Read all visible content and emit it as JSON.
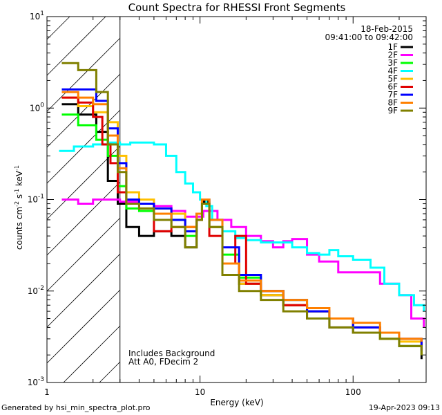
{
  "chart_data": {
    "type": "line",
    "title": "Count Spectra for RHESSI Front Segments",
    "xlabel": "Energy (keV)",
    "ylabel": "counts cm",
    "ylabel_full": "counts cm^-2 s^-1 keV^-1",
    "xscale": "log",
    "yscale": "log",
    "xlim": [
      1,
      300
    ],
    "ylim": [
      0.001,
      10
    ],
    "x_ticks": [
      {
        "value": 1,
        "label": "1"
      },
      {
        "value": 10,
        "label": "10"
      },
      {
        "value": 100,
        "label": "100"
      }
    ],
    "y_ticks": [
      {
        "value": 0.001,
        "base": "10",
        "exp": "-3"
      },
      {
        "value": 0.01,
        "base": "10",
        "exp": "-2"
      },
      {
        "value": 0.1,
        "base": "10",
        "exp": "-1"
      },
      {
        "value": 1,
        "base": "10",
        "exp": "0"
      },
      {
        "value": 10,
        "base": "10",
        "exp": "1"
      }
    ],
    "date": "18-Feb-2015",
    "time_range": "09:41:00 to 09:42:00",
    "hatched_below_keV": 3,
    "annotations": [
      "Includes Background",
      "Att A0, FDecim 2"
    ],
    "series": [
      {
        "name": "1F",
        "color": "#000000",
        "points": [
          [
            1.25,
            1.1
          ],
          [
            1.6,
            0.85
          ],
          [
            2.1,
            0.55
          ],
          [
            2.5,
            0.16
          ],
          [
            2.9,
            0.09
          ],
          [
            3.3,
            0.05
          ],
          [
            4,
            0.04
          ],
          [
            5,
            0.045
          ],
          [
            6.5,
            0.04
          ],
          [
            8,
            0.03
          ],
          [
            9.5,
            0.06
          ],
          [
            10.3,
            0.095
          ],
          [
            11.5,
            0.05
          ],
          [
            14,
            0.02
          ],
          [
            18,
            0.012
          ],
          [
            25,
            0.009
          ],
          [
            35,
            0.007
          ],
          [
            50,
            0.005
          ],
          [
            70,
            0.004
          ],
          [
            100,
            0.0035
          ],
          [
            150,
            0.003
          ],
          [
            200,
            0.0025
          ],
          [
            280,
            0.0018
          ]
        ]
      },
      {
        "name": "2F",
        "color": "#ff00ff",
        "points": [
          [
            1.25,
            0.1
          ],
          [
            1.6,
            0.09
          ],
          [
            2,
            0.1
          ],
          [
            2.5,
            0.1
          ],
          [
            3,
            0.095
          ],
          [
            4,
            0.09
          ],
          [
            5,
            0.085
          ],
          [
            6.5,
            0.075
          ],
          [
            8,
            0.065
          ],
          [
            10.5,
            0.075
          ],
          [
            13,
            0.06
          ],
          [
            16,
            0.05
          ],
          [
            20,
            0.04
          ],
          [
            25,
            0.035
          ],
          [
            30,
            0.03
          ],
          [
            35,
            0.035
          ],
          [
            40,
            0.037
          ],
          [
            50,
            0.025
          ],
          [
            60,
            0.021
          ],
          [
            80,
            0.016
          ],
          [
            100,
            0.016
          ],
          [
            150,
            0.012
          ],
          [
            200,
            0.009
          ],
          [
            240,
            0.005
          ],
          [
            290,
            0.004
          ]
        ]
      },
      {
        "name": "3F",
        "color": "#00ff00",
        "points": [
          [
            1.25,
            0.85
          ],
          [
            1.6,
            0.65
          ],
          [
            2.1,
            0.45
          ],
          [
            2.5,
            0.3
          ],
          [
            2.9,
            0.14
          ],
          [
            3.3,
            0.08
          ],
          [
            4,
            0.075
          ],
          [
            5,
            0.07
          ],
          [
            6.5,
            0.06
          ],
          [
            8,
            0.04
          ],
          [
            9.5,
            0.07
          ],
          [
            10.3,
            0.1
          ],
          [
            11.5,
            0.06
          ],
          [
            14,
            0.025
          ],
          [
            18,
            0.014
          ],
          [
            25,
            0.01
          ],
          [
            35,
            0.008
          ],
          [
            50,
            0.006
          ],
          [
            70,
            0.005
          ],
          [
            100,
            0.004
          ],
          [
            150,
            0.003
          ],
          [
            200,
            0.0025
          ],
          [
            280,
            0.002
          ]
        ]
      },
      {
        "name": "4F",
        "color": "#00ffff",
        "points": [
          [
            1.2,
            0.34
          ],
          [
            1.5,
            0.38
          ],
          [
            2,
            0.4
          ],
          [
            2.5,
            0.42
          ],
          [
            3,
            0.4
          ],
          [
            3.5,
            0.42
          ],
          [
            4,
            0.42
          ],
          [
            5,
            0.4
          ],
          [
            6,
            0.3
          ],
          [
            7,
            0.2
          ],
          [
            8,
            0.15
          ],
          [
            9,
            0.12
          ],
          [
            10,
            0.1
          ],
          [
            11,
            0.085
          ],
          [
            12,
            0.06
          ],
          [
            14,
            0.045
          ],
          [
            17,
            0.038
          ],
          [
            20,
            0.036
          ],
          [
            25,
            0.034
          ],
          [
            30,
            0.034
          ],
          [
            40,
            0.03
          ],
          [
            50,
            0.026
          ],
          [
            60,
            0.025
          ],
          [
            70,
            0.028
          ],
          [
            80,
            0.024
          ],
          [
            100,
            0.022
          ],
          [
            130,
            0.018
          ],
          [
            160,
            0.012
          ],
          [
            200,
            0.009
          ],
          [
            250,
            0.007
          ],
          [
            290,
            0.006
          ]
        ]
      },
      {
        "name": "5F",
        "color": "#ffc000",
        "points": [
          [
            1.25,
            1.3
          ],
          [
            1.6,
            1.05
          ],
          [
            2,
            0.9
          ],
          [
            2.5,
            0.7
          ],
          [
            2.9,
            0.3
          ],
          [
            3.3,
            0.12
          ],
          [
            4,
            0.1
          ],
          [
            5,
            0.08
          ],
          [
            6.5,
            0.07
          ],
          [
            8,
            0.05
          ],
          [
            9.5,
            0.07
          ],
          [
            10.3,
            0.09
          ],
          [
            11.5,
            0.05
          ],
          [
            14,
            0.02
          ],
          [
            18,
            0.012
          ],
          [
            25,
            0.009
          ],
          [
            35,
            0.007
          ],
          [
            50,
            0.006
          ],
          [
            70,
            0.005
          ],
          [
            100,
            0.004
          ],
          [
            150,
            0.003
          ],
          [
            200,
            0.0028
          ],
          [
            280,
            0.002
          ]
        ]
      },
      {
        "name": "6F",
        "color": "#e00000",
        "points": [
          [
            1.25,
            1.3
          ],
          [
            1.6,
            1.15
          ],
          [
            2,
            0.8
          ],
          [
            2.3,
            0.4
          ],
          [
            2.6,
            0.25
          ],
          [
            2.9,
            0.12
          ],
          [
            3.3,
            0.1
          ],
          [
            4,
            0.09
          ],
          [
            5,
            0.045
          ],
          [
            6.5,
            0.05
          ],
          [
            8,
            0.05
          ],
          [
            9.5,
            0.06
          ],
          [
            10.3,
            0.1
          ],
          [
            11.5,
            0.04
          ],
          [
            14,
            0.02
          ],
          [
            17,
            0.04
          ],
          [
            20,
            0.012
          ],
          [
            25,
            0.01
          ],
          [
            35,
            0.007
          ],
          [
            50,
            0.006
          ],
          [
            70,
            0.005
          ],
          [
            100,
            0.004
          ],
          [
            150,
            0.0035
          ],
          [
            200,
            0.003
          ],
          [
            280,
            0.0025
          ]
        ]
      },
      {
        "name": "7F",
        "color": "#0000ff",
        "points": [
          [
            1.25,
            1.6
          ],
          [
            1.6,
            1.6
          ],
          [
            2.1,
            1.2
          ],
          [
            2.5,
            0.6
          ],
          [
            2.9,
            0.25
          ],
          [
            3.3,
            0.1
          ],
          [
            4,
            0.09
          ],
          [
            5,
            0.08
          ],
          [
            6.5,
            0.06
          ],
          [
            8,
            0.045
          ],
          [
            9.5,
            0.07
          ],
          [
            10.3,
            0.1
          ],
          [
            11.5,
            0.06
          ],
          [
            14,
            0.03
          ],
          [
            18,
            0.015
          ],
          [
            25,
            0.01
          ],
          [
            35,
            0.008
          ],
          [
            50,
            0.006
          ],
          [
            70,
            0.005
          ],
          [
            100,
            0.004
          ],
          [
            150,
            0.0035
          ],
          [
            200,
            0.003
          ],
          [
            280,
            0.0022
          ]
        ]
      },
      {
        "name": "8F",
        "color": "#ff8000",
        "points": [
          [
            1.25,
            1.5
          ],
          [
            1.6,
            1.3
          ],
          [
            2,
            1.1
          ],
          [
            2.5,
            0.5
          ],
          [
            2.9,
            0.22
          ],
          [
            3.3,
            0.09
          ],
          [
            4,
            0.08
          ],
          [
            5,
            0.07
          ],
          [
            6.5,
            0.05
          ],
          [
            8,
            0.05
          ],
          [
            9.5,
            0.07
          ],
          [
            10.3,
            0.1
          ],
          [
            11.5,
            0.06
          ],
          [
            14,
            0.02
          ],
          [
            18,
            0.013
          ],
          [
            25,
            0.01
          ],
          [
            35,
            0.008
          ],
          [
            50,
            0.0065
          ],
          [
            70,
            0.005
          ],
          [
            100,
            0.0045
          ],
          [
            150,
            0.0035
          ],
          [
            200,
            0.003
          ],
          [
            280,
            0.0028
          ]
        ]
      },
      {
        "name": "9F",
        "color": "#808000",
        "points": [
          [
            1.25,
            3.1
          ],
          [
            1.6,
            2.6
          ],
          [
            2.1,
            1.5
          ],
          [
            2.5,
            0.4
          ],
          [
            2.9,
            0.2
          ],
          [
            3.3,
            0.09
          ],
          [
            4,
            0.08
          ],
          [
            5,
            0.06
          ],
          [
            6.5,
            0.05
          ],
          [
            8,
            0.03
          ],
          [
            9.5,
            0.06
          ],
          [
            10.3,
            0.09
          ],
          [
            11.5,
            0.05
          ],
          [
            14,
            0.015
          ],
          [
            18,
            0.01
          ],
          [
            25,
            0.008
          ],
          [
            35,
            0.006
          ],
          [
            50,
            0.005
          ],
          [
            70,
            0.004
          ],
          [
            100,
            0.0035
          ],
          [
            150,
            0.003
          ],
          [
            200,
            0.0025
          ],
          [
            280,
            0.002
          ]
        ]
      }
    ]
  },
  "footer": {
    "left": "Generated by hsi_min_spectra_plot.pro",
    "right": "19-Apr-2023 09:13"
  }
}
